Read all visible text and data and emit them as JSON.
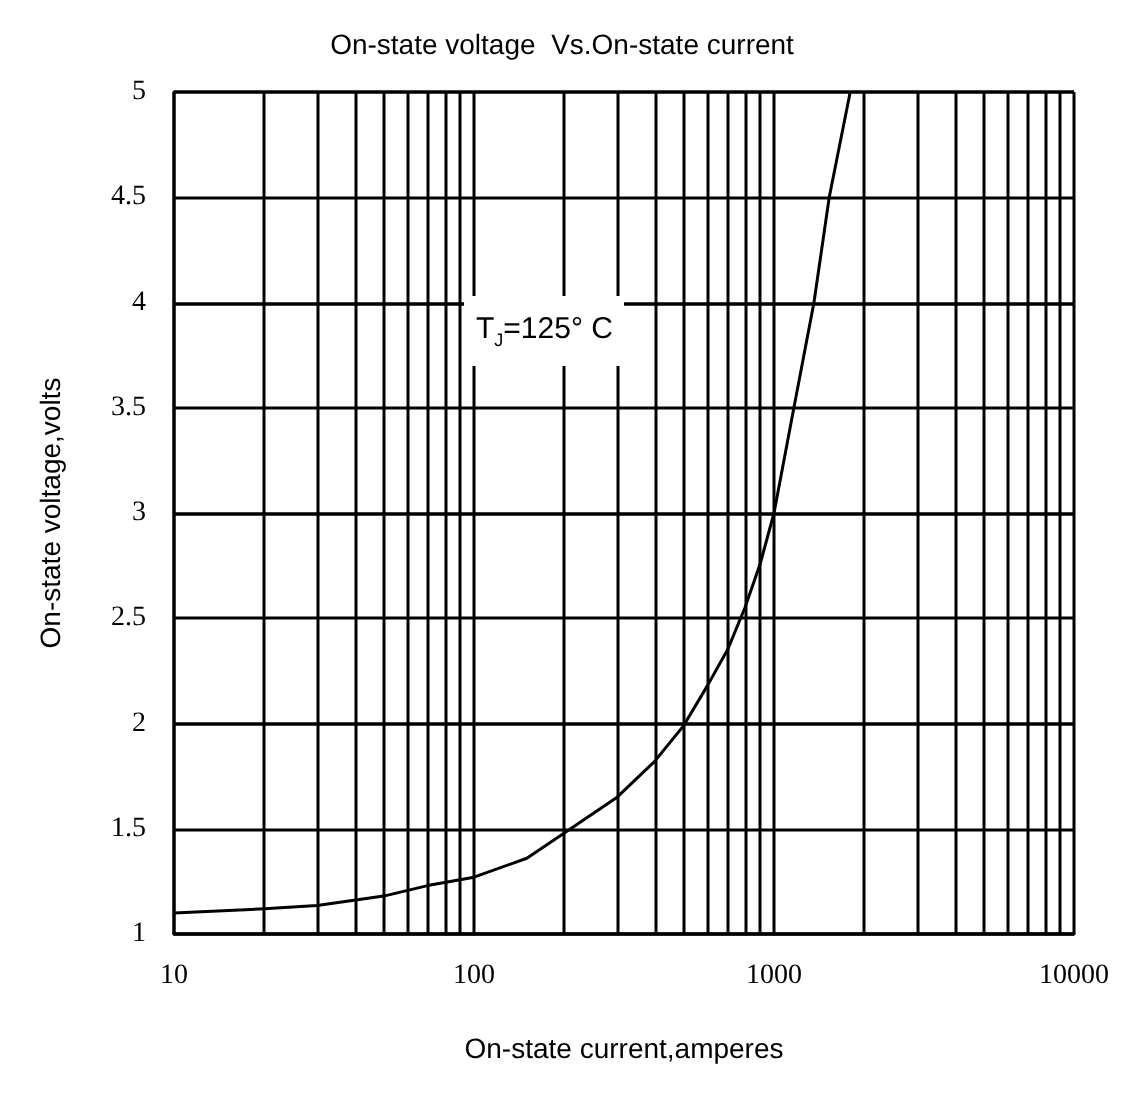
{
  "chart_data": {
    "type": "line",
    "title": "On-state voltage  Vs.On-state current",
    "xlabel": "On-state current,amperes",
    "ylabel": "On-state voltage,volts",
    "log": "x",
    "grid": true,
    "marker": "none",
    "line_style": "solid",
    "annotations": [
      "T$_{J}$=125°  C"
    ],
    "xlim": [
      10,
      10000
    ],
    "xticks": [
      10,
      100,
      1000,
      10000
    ],
    "ylim": [
      1,
      5
    ],
    "yticks": [
      1,
      1.5,
      2,
      2.5,
      3,
      3.5,
      4,
      4.5,
      5
    ],
    "series": [
      {
        "color": "#000000",
        "x": [
          10,
          20,
          30,
          50,
          70,
          100,
          150,
          200,
          300,
          400,
          500,
          600,
          700,
          800,
          900,
          1000,
          1165,
          1359,
          1528,
          1795
        ],
        "values": [
          1.1,
          1.12,
          1.135,
          1.18,
          1.23,
          1.27,
          1.36,
          1.48,
          1.65,
          1.82,
          1.99,
          2.18,
          2.35,
          2.55,
          2.76,
          3.0,
          3.5,
          4.0,
          4.5,
          5.0
        ]
      }
    ]
  }
}
